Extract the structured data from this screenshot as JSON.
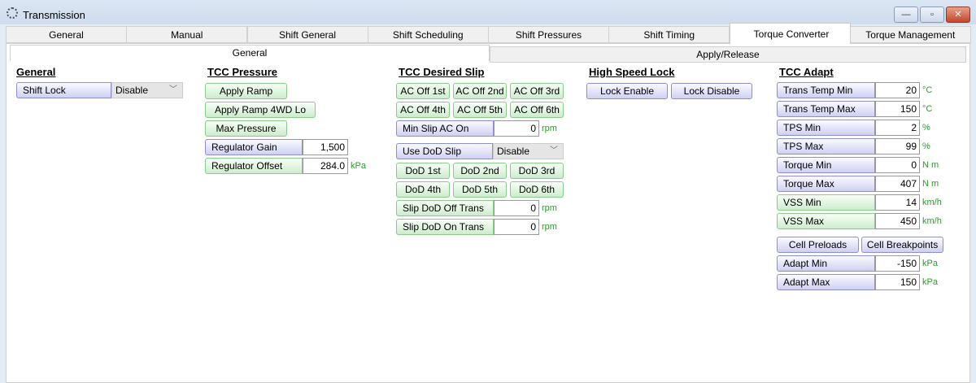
{
  "window": {
    "title": "Transmission",
    "icon": "gear-icon",
    "controls": [
      "minimize",
      "maximize",
      "close"
    ]
  },
  "tabs": [
    "General",
    "Manual",
    "Shift General",
    "Shift Scheduling",
    "Shift Pressures",
    "Shift Timing",
    "Torque Converter",
    "Torque Management"
  ],
  "active_tab": "Torque Converter",
  "subtabs": [
    "General",
    "Apply/Release"
  ],
  "active_subtab": "General",
  "general": {
    "header": "General",
    "shift_lock": {
      "label": "Shift Lock",
      "value": "Disable"
    }
  },
  "tcc_pressure": {
    "header": "TCC Pressure",
    "buttons": [
      "Apply Ramp",
      "Apply Ramp 4WD Lo",
      "Max Pressure"
    ],
    "regulator_gain": {
      "label": "Regulator Gain",
      "value": "1,500"
    },
    "regulator_offset": {
      "label": "Regulator Offset",
      "value": "284.0",
      "unit": "kPa"
    }
  },
  "tcc_desired_slip": {
    "header": "TCC Desired Slip",
    "ac_buttons": [
      "AC Off 1st",
      "AC Off 2nd",
      "AC Off 3rd",
      "AC Off 4th",
      "AC Off 5th",
      "AC Off 6th"
    ],
    "min_slip_ac_on": {
      "label": "Min Slip AC On",
      "value": "0",
      "unit": "rpm"
    },
    "use_dod_slip": {
      "label": "Use DoD Slip",
      "value": "Disable"
    },
    "dod_buttons": [
      "DoD 1st",
      "DoD 2nd",
      "DoD 3rd",
      "DoD 4th",
      "DoD 5th",
      "DoD 6th"
    ],
    "slip_dod_off": {
      "label": "Slip DoD Off Trans",
      "value": "0",
      "unit": "rpm"
    },
    "slip_dod_on": {
      "label": "Slip DoD On Trans",
      "value": "0",
      "unit": "rpm"
    }
  },
  "high_speed_lock": {
    "header": "High Speed Lock",
    "buttons": [
      "Lock Enable",
      "Lock Disable"
    ]
  },
  "tcc_adapt": {
    "header": "TCC Adapt",
    "rows": [
      {
        "label": "Trans Temp Min",
        "value": "20",
        "unit": "°C"
      },
      {
        "label": "Trans Temp Max",
        "value": "150",
        "unit": "°C"
      },
      {
        "label": "TPS Min",
        "value": "2",
        "unit": "%"
      },
      {
        "label": "TPS Max",
        "value": "99",
        "unit": "%"
      },
      {
        "label": "Torque Min",
        "value": "0",
        "unit": "N m"
      },
      {
        "label": "Torque Max",
        "value": "407",
        "unit": "N m"
      },
      {
        "label": "VSS Min",
        "value": "14",
        "unit": "km/h"
      },
      {
        "label": "VSS Max",
        "value": "450",
        "unit": "km/h"
      }
    ],
    "buttons": [
      "Cell Preloads",
      "Cell Breakpoints"
    ],
    "adapt_rows": [
      {
        "label": "Adapt Min",
        "value": "-150",
        "unit": "kPa"
      },
      {
        "label": "Adapt Max",
        "value": "150",
        "unit": "kPa"
      }
    ]
  }
}
